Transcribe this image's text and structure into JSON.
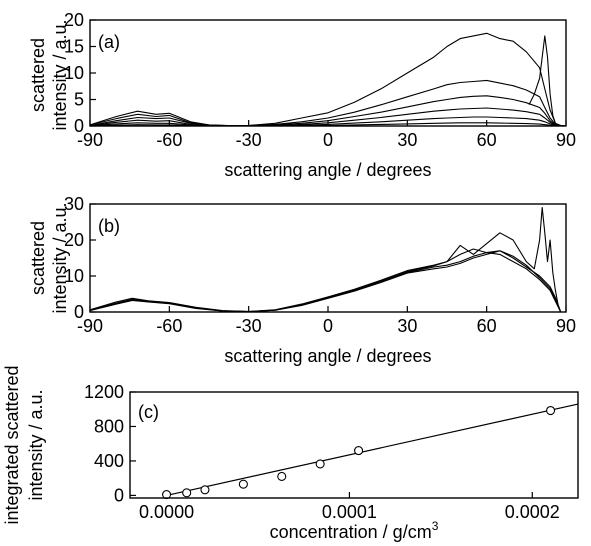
{
  "chart_data": [
    {
      "type": "line",
      "panel_label": "(a)",
      "xlabel": "scattering angle / degrees",
      "ylabel_lines": [
        "scattered",
        "intensity / a.u."
      ],
      "xlim": [
        -90,
        90
      ],
      "ylim": [
        0,
        20
      ],
      "xticks": [
        -90,
        -60,
        -30,
        0,
        30,
        60,
        90
      ],
      "yticks": [
        0,
        5,
        10,
        15,
        20
      ],
      "series": [
        {
          "x": [
            -90,
            -80,
            -72,
            -65,
            -60,
            -52,
            -45,
            -38,
            -30,
            -20,
            -10,
            0,
            10,
            20,
            30,
            40,
            45,
            50,
            55,
            60,
            65,
            70,
            75,
            80,
            82,
            84,
            86,
            88,
            90
          ],
          "y": [
            0.2,
            1.8,
            2.8,
            2.2,
            2.4,
            0.8,
            0.2,
            0.1,
            0.1,
            0.5,
            1.5,
            2.5,
            4.5,
            7,
            10,
            13,
            15,
            16.5,
            17,
            17.5,
            16.5,
            16,
            14,
            11,
            7,
            3,
            0.5,
            0.1,
            0
          ]
        },
        {
          "x": [
            -90,
            -80,
            -72,
            -65,
            -60,
            -52,
            -45,
            -38,
            -30,
            -20,
            -10,
            0,
            10,
            20,
            30,
            40,
            45,
            50,
            55,
            60,
            65,
            70,
            75,
            80,
            82,
            84,
            86,
            88,
            90
          ],
          "y": [
            0.2,
            1.4,
            2.2,
            1.8,
            2.0,
            0.6,
            0.2,
            0.1,
            0.1,
            0.3,
            0.8,
            1.5,
            2.6,
            4,
            5.5,
            7,
            7.8,
            8.2,
            8.4,
            8.6,
            8.1,
            7.6,
            6.8,
            5.5,
            3.5,
            1.5,
            0.3,
            0.1,
            0
          ]
        },
        {
          "x": [
            -90,
            -80,
            -72,
            -65,
            -60,
            -52,
            -45,
            -38,
            -30,
            -20,
            -10,
            0,
            10,
            20,
            30,
            40,
            45,
            50,
            55,
            60,
            65,
            70,
            75,
            80,
            82,
            84,
            86,
            88,
            90
          ],
          "y": [
            0.1,
            1.0,
            1.6,
            1.4,
            1.5,
            0.5,
            0.1,
            0.05,
            0.05,
            0.2,
            0.5,
            1.0,
            1.8,
            2.6,
            3.6,
            4.6,
            5.0,
            5.4,
            5.6,
            5.7,
            5.4,
            5.0,
            4.4,
            3.5,
            2.4,
            1.0,
            0.2,
            0.1,
            0
          ]
        },
        {
          "x": [
            -90,
            -80,
            -72,
            -65,
            -60,
            -52,
            -45,
            -38,
            -30,
            -20,
            -10,
            0,
            10,
            20,
            30,
            40,
            45,
            50,
            55,
            60,
            65,
            70,
            75,
            80,
            82,
            84,
            86,
            88,
            90
          ],
          "y": [
            0.1,
            0.7,
            1.1,
            0.9,
            1.0,
            0.3,
            0.1,
            0.05,
            0.05,
            0.1,
            0.3,
            0.6,
            1.1,
            1.6,
            2.2,
            2.8,
            3.0,
            3.2,
            3.3,
            3.4,
            3.2,
            3.0,
            2.7,
            2.2,
            1.5,
            0.7,
            0.1,
            0.05,
            0
          ]
        },
        {
          "x": [
            -90,
            -80,
            -72,
            -65,
            -60,
            -52,
            -45,
            -38,
            -30,
            -20,
            -10,
            0,
            10,
            20,
            30,
            40,
            45,
            50,
            55,
            60,
            65,
            70,
            75,
            80,
            82,
            84,
            86,
            88,
            90
          ],
          "y": [
            0.05,
            0.4,
            0.6,
            0.5,
            0.5,
            0.2,
            0.05,
            0,
            0,
            0.05,
            0.15,
            0.3,
            0.55,
            0.8,
            1.1,
            1.4,
            1.5,
            1.6,
            1.7,
            1.7,
            1.6,
            1.5,
            1.4,
            1.1,
            0.8,
            0.4,
            0.1,
            0,
            0
          ]
        },
        {
          "x": [
            -90,
            -80,
            -72,
            -65,
            -60,
            -52,
            -45,
            -38,
            -30,
            -20,
            -10,
            0,
            10,
            20,
            30,
            40,
            45,
            50,
            55,
            60,
            65,
            70,
            75,
            80,
            82,
            84,
            86,
            88,
            90
          ],
          "y": [
            0.02,
            0.15,
            0.25,
            0.2,
            0.2,
            0.1,
            0.02,
            0,
            0,
            0.02,
            0.05,
            0.1,
            0.2,
            0.3,
            0.4,
            0.5,
            0.55,
            0.6,
            0.6,
            0.6,
            0.55,
            0.5,
            0.45,
            0.35,
            0.25,
            0.15,
            0.05,
            0,
            0
          ]
        },
        {
          "x": [
            76,
            78,
            80,
            81,
            82,
            83,
            84,
            85,
            86,
            87,
            88
          ],
          "y": [
            4,
            6,
            9,
            13,
            17,
            13,
            6,
            2,
            0.5,
            0.1,
            0
          ]
        }
      ]
    },
    {
      "type": "line",
      "panel_label": "(b)",
      "xlabel": "scattering angle / degrees",
      "ylabel_lines": [
        "scattered",
        "intensity / a.u."
      ],
      "xlim": [
        -90,
        90
      ],
      "ylim": [
        0,
        30
      ],
      "xticks": [
        -90,
        -60,
        -30,
        0,
        30,
        60,
        90
      ],
      "yticks": [
        0,
        10,
        20,
        30
      ],
      "series": [
        {
          "x": [
            -90,
            -80,
            -74,
            -68,
            -60,
            -50,
            -40,
            -30,
            -20,
            -10,
            0,
            10,
            20,
            30,
            40,
            45,
            50,
            55,
            60,
            65,
            70,
            75,
            80,
            84,
            86,
            88
          ],
          "y": [
            0.5,
            2.5,
            3.5,
            3.0,
            2.5,
            1.2,
            0.3,
            0.1,
            0.5,
            2,
            4,
            6,
            8.5,
            11,
            12.5,
            13,
            14,
            15.5,
            16.5,
            16,
            14,
            12,
            9,
            6,
            3,
            0
          ]
        },
        {
          "x": [
            -90,
            -80,
            -74,
            -68,
            -60,
            -50,
            -40,
            -30,
            -20,
            -10,
            0,
            10,
            20,
            30,
            40,
            45,
            50,
            55,
            60,
            65,
            70,
            75,
            80,
            84,
            86,
            88
          ],
          "y": [
            0.4,
            2.2,
            3.2,
            2.8,
            2.3,
            1.0,
            0.3,
            0.1,
            0.6,
            2.2,
            4.2,
            6.3,
            8.8,
            11.5,
            13,
            14,
            16,
            17.5,
            16.5,
            17,
            15,
            12.5,
            10,
            7,
            4,
            0
          ]
        },
        {
          "x": [
            -90,
            -80,
            -74,
            -68,
            -60,
            -50,
            -40,
            -30,
            -20,
            -10,
            0,
            10,
            20,
            30,
            40,
            45,
            50,
            55,
            60,
            65,
            70,
            75,
            80,
            84,
            86,
            88
          ],
          "y": [
            0.6,
            2.8,
            3.8,
            3.1,
            2.6,
            1.3,
            0.4,
            0.1,
            0.5,
            1.8,
            3.8,
            5.8,
            8.2,
            10.8,
            12,
            12.5,
            13.5,
            15,
            16,
            17,
            15.5,
            13,
            9.5,
            6.5,
            3.5,
            0
          ]
        },
        {
          "x": [
            -90,
            -80,
            -74,
            -68,
            -60,
            -50,
            -40,
            -30,
            -20,
            -10,
            0,
            10,
            20,
            30,
            40,
            45,
            50,
            55,
            60,
            65,
            70,
            75,
            78,
            80,
            81,
            82,
            83,
            84,
            85,
            86,
            87,
            88
          ],
          "y": [
            0.5,
            2.4,
            3.4,
            2.9,
            2.4,
            1.1,
            0.3,
            0.1,
            0.5,
            2,
            4,
            6,
            8.5,
            11.2,
            12.8,
            14,
            18.5,
            16,
            19,
            22,
            20,
            14,
            12,
            20,
            29,
            22,
            14,
            20,
            11,
            6,
            2,
            0
          ]
        }
      ]
    },
    {
      "type": "scatter",
      "panel_label": "(c)",
      "xlabel": "concentration / g/cm",
      "xlabel_superscript": "3",
      "ylabel_lines": [
        "integrated scattered",
        "intensity / a.u."
      ],
      "xlim": [
        -2e-05,
        0.000225
      ],
      "ylim": [
        -30,
        1200
      ],
      "xticks": [
        0.0,
        0.0001,
        0.0002
      ],
      "xtick_labels": [
        "0.0000",
        "0.0001",
        "0.0002"
      ],
      "yticks": [
        0,
        400,
        800,
        1200
      ],
      "points": {
        "x": [
          0.0,
          1.1e-05,
          2.1e-05,
          4.2e-05,
          6.3e-05,
          8.4e-05,
          0.000105,
          0.00021
        ],
        "y": [
          10,
          30,
          65,
          130,
          220,
          365,
          520,
          985
        ]
      },
      "fit_line": {
        "x": [
          0.0,
          0.000225
        ],
        "y": [
          0,
          1060
        ]
      }
    }
  ]
}
